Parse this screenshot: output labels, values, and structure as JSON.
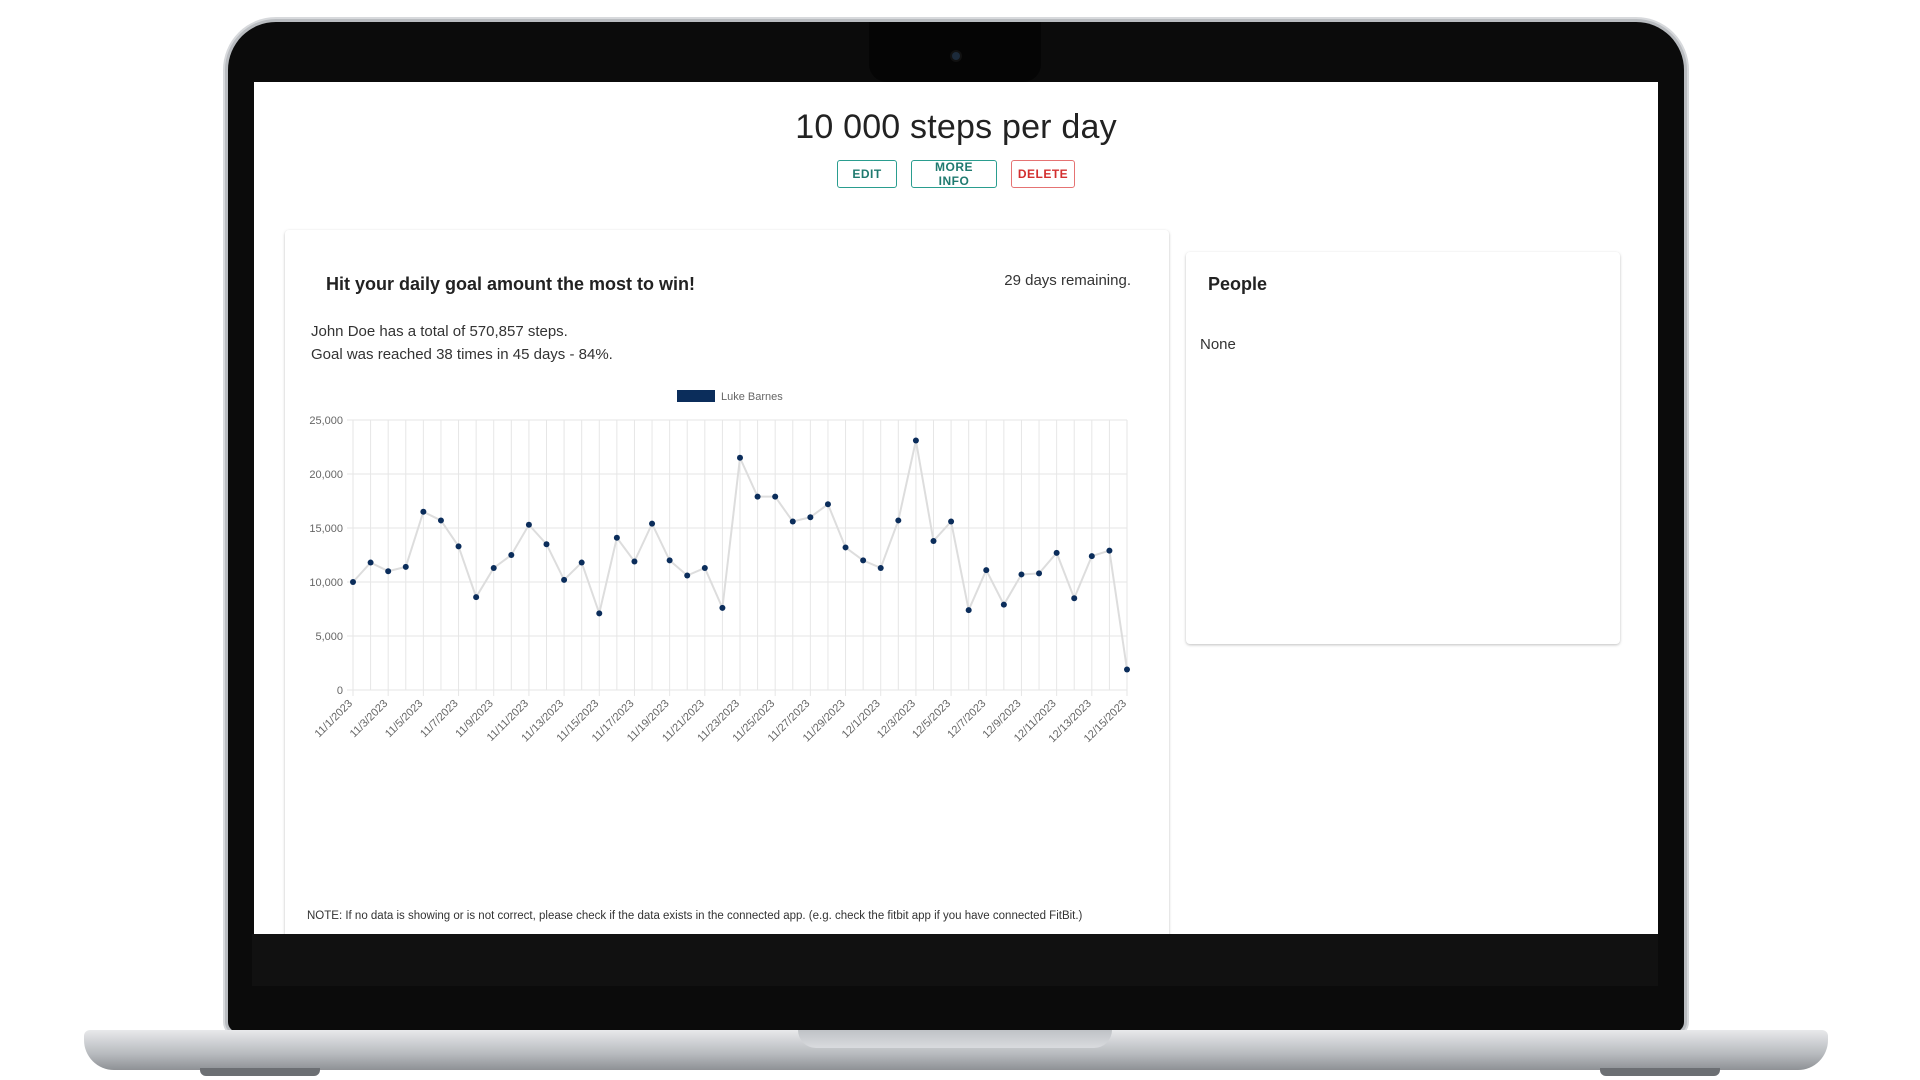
{
  "page": {
    "title": "10 000 steps per day",
    "actions": {
      "edit": "EDIT",
      "more_info": "MORE INFO",
      "delete": "DELETE"
    }
  },
  "challenge": {
    "heading": "Hit your daily goal amount the most to win!",
    "days_remaining": "29 days remaining.",
    "total_line": "John Doe has a total of 570,857 steps.",
    "goal_line": "Goal was reached 38 times in 45 days - 84%.",
    "note": "NOTE: If no data is showing or is not correct, please check if the data exists in the connected app. (e.g. check the fitbit app if you have connected FitBit.)"
  },
  "people": {
    "heading": "People",
    "empty_text": "None"
  },
  "colors": {
    "series": "#0b2d5b",
    "line": "#dddddd",
    "grid": "#e6e6e6",
    "accent": "#2a9d8f",
    "danger": "#d32f2f"
  },
  "chart_data": {
    "type": "line",
    "legend": "top",
    "grid": true,
    "ylim": [
      0,
      25000
    ],
    "yticks": [
      "0",
      "5,000",
      "10,000",
      "15,000",
      "20,000",
      "25,000"
    ],
    "ytick_values": [
      0,
      5000,
      10000,
      15000,
      20000,
      25000
    ],
    "x": [
      "11/1/2023",
      "11/2/2023",
      "11/3/2023",
      "11/4/2023",
      "11/5/2023",
      "11/6/2023",
      "11/7/2023",
      "11/8/2023",
      "11/9/2023",
      "11/10/2023",
      "11/11/2023",
      "11/12/2023",
      "11/13/2023",
      "11/14/2023",
      "11/15/2023",
      "11/16/2023",
      "11/17/2023",
      "11/18/2023",
      "11/19/2023",
      "11/20/2023",
      "11/21/2023",
      "11/22/2023",
      "11/23/2023",
      "11/24/2023",
      "11/25/2023",
      "11/26/2023",
      "11/27/2023",
      "11/28/2023",
      "11/29/2023",
      "11/30/2023",
      "12/1/2023",
      "12/2/2023",
      "12/3/2023",
      "12/4/2023",
      "12/5/2023",
      "12/6/2023",
      "12/7/2023",
      "12/8/2023",
      "12/9/2023",
      "12/10/2023",
      "12/11/2023",
      "12/12/2023",
      "12/13/2023",
      "12/14/2023",
      "12/15/2023"
    ],
    "xtick_labels": [
      "11/1/2023",
      "11/3/2023",
      "11/5/2023",
      "11/7/2023",
      "11/9/2023",
      "11/11/2023",
      "11/13/2023",
      "11/15/2023",
      "11/17/2023",
      "11/19/2023",
      "11/21/2023",
      "11/23/2023",
      "11/25/2023",
      "11/27/2023",
      "11/29/2023",
      "12/1/2023",
      "12/3/2023",
      "12/5/2023",
      "12/7/2023",
      "12/9/2023",
      "12/11/2023",
      "12/13/2023",
      "12/15/2023"
    ],
    "series": [
      {
        "name": "Luke Barnes",
        "values": [
          10000,
          11800,
          11000,
          11400,
          16500,
          15700,
          13300,
          8600,
          11300,
          12500,
          15300,
          13500,
          10200,
          11800,
          7100,
          14100,
          11900,
          15400,
          12000,
          10600,
          11300,
          7600,
          21500,
          17900,
          17900,
          15600,
          16000,
          17200,
          13200,
          12000,
          11300,
          15700,
          23100,
          13800,
          15600,
          7400,
          11100,
          7900,
          10700,
          10800,
          12700,
          8500,
          12400,
          12900,
          1900
        ]
      }
    ]
  }
}
